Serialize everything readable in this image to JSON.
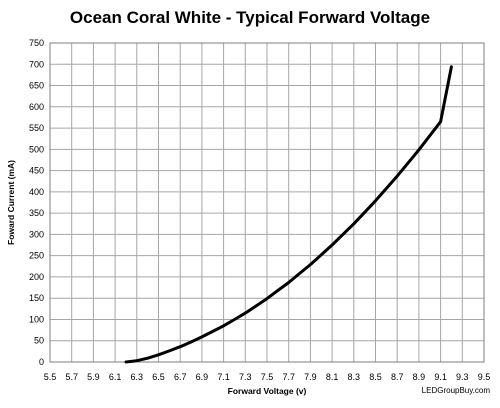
{
  "chart_data": {
    "type": "line",
    "title": "Ocean Coral White - Typical Forward Voltage",
    "xlabel": "Forward Voltage (v)",
    "ylabel": "Foward Current (mA)",
    "xlim": [
      5.5,
      9.5
    ],
    "ylim": [
      0,
      750
    ],
    "x_ticks": [
      "5.5",
      "5.7",
      "5.9",
      "6.1",
      "6.3",
      "6.5",
      "6.7",
      "6.9",
      "7.1",
      "7.3",
      "7.5",
      "7.7",
      "7.9",
      "8.1",
      "8.3",
      "8.5",
      "8.7",
      "8.9",
      "9.1",
      "9.3",
      "9.5"
    ],
    "y_ticks": [
      "0",
      "50",
      "100",
      "150",
      "200",
      "250",
      "300",
      "350",
      "400",
      "450",
      "500",
      "550",
      "600",
      "650",
      "700",
      "750"
    ],
    "grid": true,
    "series": [
      {
        "color": "#000000",
        "x": [
          6.2,
          6.3,
          6.4,
          6.5,
          6.6,
          6.7,
          6.8,
          6.9,
          7.0,
          7.1,
          7.2,
          7.3,
          7.4,
          7.5,
          7.6,
          7.7,
          7.8,
          7.9,
          8.0,
          8.1,
          8.2,
          8.3,
          8.4,
          8.5,
          8.6,
          8.7,
          8.8,
          8.9,
          9.0,
          9.1,
          9.2
        ],
        "y": [
          0,
          3,
          9,
          17,
          26,
          36,
          47,
          59,
          72,
          85,
          100,
          115,
          132,
          149,
          168,
          187,
          208,
          229,
          252,
          275,
          300,
          325,
          352,
          379,
          408,
          437,
          468,
          499,
          532,
          565,
          694
        ]
      }
    ]
  },
  "watermark": "LEDGroupBuy.com",
  "colors": {
    "line": "#000000",
    "grid": "#a6a6a6",
    "frame": "#7f7f7f"
  }
}
